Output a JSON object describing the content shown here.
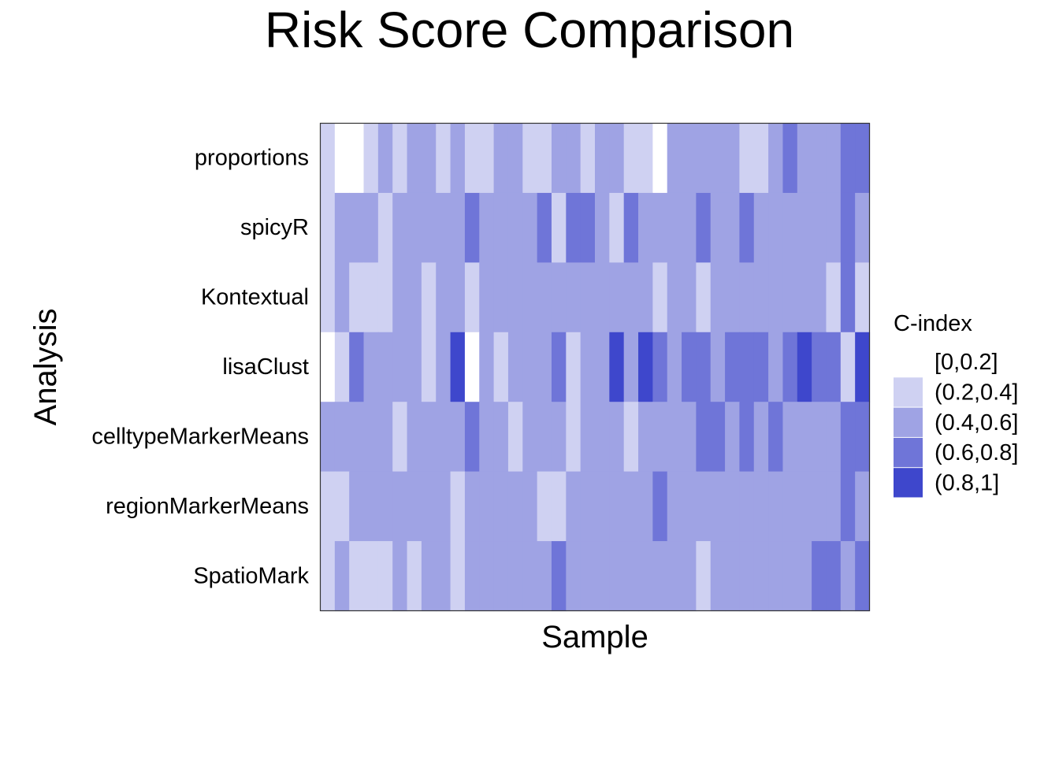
{
  "chart_data": {
    "type": "heatmap",
    "title": "Risk Score Comparison",
    "xlabel": "Sample",
    "ylabel": "Analysis",
    "rows": [
      "proportions",
      "spicyR",
      "Kontextual",
      "lisaClust",
      "celltypeMarkerMeans",
      "regionMarkerMeans",
      "SpatioMark"
    ],
    "n_samples": 38,
    "x_tick_labels_shown": false,
    "legend": {
      "title": "C-index",
      "position": "right",
      "bins": [
        {
          "label": "[0,0.2]",
          "color": "#ffffff"
        },
        {
          "label": "(0.2,0.4]",
          "color": "#cfd1f2"
        },
        {
          "label": "(0.4,0.6]",
          "color": "#9fa3e4"
        },
        {
          "label": "(0.6,0.8]",
          "color": "#6f75d8"
        },
        {
          "label": "(0.8,1]",
          "color": "#3e47cc"
        }
      ]
    },
    "values": [
      [
        1,
        0,
        0,
        1,
        2,
        1,
        2,
        2,
        1,
        2,
        1,
        1,
        2,
        2,
        1,
        1,
        2,
        2,
        1,
        2,
        2,
        1,
        1,
        0,
        2,
        2,
        2,
        2,
        2,
        1,
        1,
        2,
        3,
        2,
        2,
        2,
        3,
        3
      ],
      [
        1,
        2,
        2,
        2,
        1,
        2,
        2,
        2,
        2,
        2,
        3,
        2,
        2,
        2,
        2,
        3,
        1,
        3,
        3,
        2,
        1,
        3,
        2,
        2,
        2,
        2,
        3,
        2,
        2,
        3,
        2,
        2,
        2,
        2,
        2,
        2,
        3,
        2
      ],
      [
        1,
        2,
        1,
        1,
        1,
        2,
        2,
        1,
        2,
        2,
        1,
        2,
        2,
        2,
        2,
        2,
        2,
        2,
        2,
        2,
        2,
        2,
        2,
        1,
        2,
        2,
        1,
        2,
        2,
        2,
        2,
        2,
        2,
        2,
        2,
        1,
        3,
        1
      ],
      [
        0,
        1,
        3,
        2,
        2,
        2,
        2,
        1,
        2,
        4,
        0,
        2,
        1,
        2,
        2,
        2,
        3,
        1,
        2,
        2,
        4,
        2,
        4,
        3,
        2,
        3,
        3,
        2,
        3,
        3,
        3,
        2,
        3,
        4,
        3,
        3,
        1,
        4
      ],
      [
        2,
        2,
        2,
        2,
        2,
        1,
        2,
        2,
        2,
        2,
        3,
        2,
        2,
        1,
        2,
        2,
        2,
        1,
        2,
        2,
        2,
        1,
        2,
        2,
        2,
        2,
        3,
        3,
        2,
        3,
        2,
        3,
        2,
        2,
        2,
        2,
        3,
        3
      ],
      [
        1,
        1,
        2,
        2,
        2,
        2,
        2,
        2,
        2,
        1,
        2,
        2,
        2,
        2,
        2,
        1,
        1,
        2,
        2,
        2,
        2,
        2,
        2,
        3,
        2,
        2,
        2,
        2,
        2,
        2,
        2,
        2,
        2,
        2,
        2,
        2,
        3,
        2
      ],
      [
        1,
        2,
        1,
        1,
        1,
        2,
        1,
        2,
        2,
        1,
        2,
        2,
        2,
        2,
        2,
        2,
        3,
        2,
        2,
        2,
        2,
        2,
        2,
        2,
        2,
        2,
        1,
        2,
        2,
        2,
        2,
        2,
        2,
        2,
        3,
        3,
        2,
        3
      ]
    ]
  }
}
